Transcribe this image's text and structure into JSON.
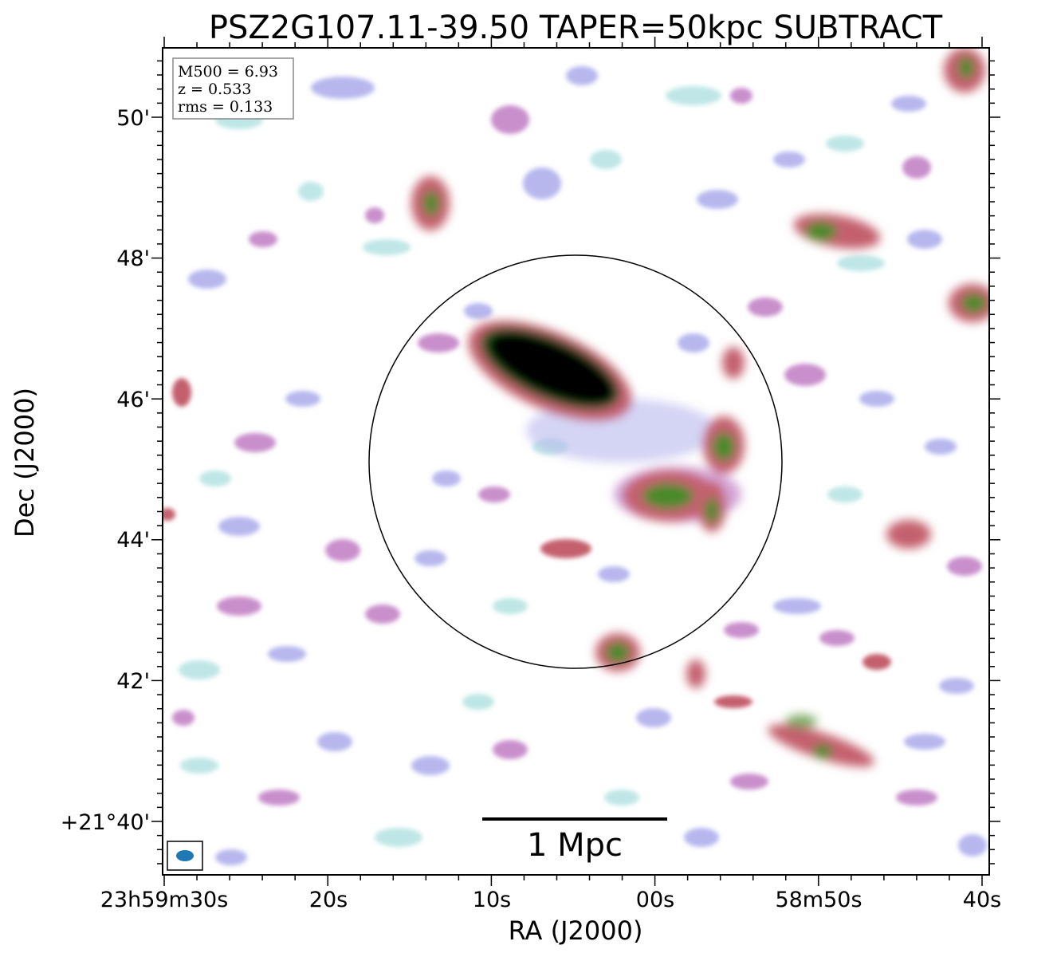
{
  "chart_data": {
    "type": "heatmap",
    "title": "PSZ2G107.11-39.50 TAPER=50kpc SUBTRACT",
    "xlabel": "RA (J2000)",
    "ylabel": "Dec (J2000)",
    "x_ticks": [
      "23h59m30s",
      "20s",
      "10s",
      "00s",
      "58m50s",
      "40s"
    ],
    "y_ticks": [
      "+21°40'",
      "42'",
      "44'",
      "46'",
      "48'",
      "50'"
    ],
    "info_box": [
      "M500 = 6.93",
      "z = 0.533",
      "rms = 0.133"
    ],
    "scalebar_label": "1 Mpc",
    "colormap": [
      "#ffffff",
      "#bfe6e6",
      "#b7b7ee",
      "#c98fcc",
      "#c4606e",
      "#4a8a2a",
      "#1f5a1f",
      "#000000"
    ],
    "beam_color": "#1f77b4",
    "circle_color": "#000000",
    "sources": [
      {
        "ra": "23h59m06s",
        "dec": "+21°46.3'",
        "peak": "saturated"
      },
      {
        "ra": "23h58m56s",
        "dec": "+21°44.7'",
        "peak": "high"
      },
      {
        "ra": "23h58m55s",
        "dec": "+21°45.3'",
        "peak": "high"
      },
      {
        "ra": "23h59m02s",
        "dec": "+21°42.4'",
        "peak": "high"
      },
      {
        "ra": "23h59m14s",
        "dec": "+21°48.9'",
        "peak": "high"
      },
      {
        "ra": "23h58m50s",
        "dec": "+21°48.5'",
        "peak": "high"
      },
      {
        "ra": "23h58m40s",
        "dec": "+21°47.3'",
        "peak": "high"
      },
      {
        "ra": "23h58m50s",
        "dec": "+21°41.0'",
        "peak": "medium"
      }
    ]
  }
}
